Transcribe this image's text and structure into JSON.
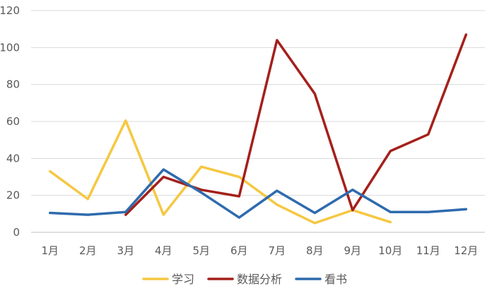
{
  "chart_data": {
    "type": "line",
    "categories": [
      "1月",
      "2月",
      "3月",
      "4月",
      "5月",
      "6月",
      "7月",
      "8月",
      "9月",
      "10月",
      "11月",
      "12月"
    ],
    "ylim": [
      0,
      120
    ],
    "yticks": [
      0,
      20,
      40,
      60,
      80,
      100,
      120
    ],
    "grid": true,
    "legend_position": "bottom",
    "series": [
      {
        "name": "学习",
        "color": "#F5C842",
        "values": [
          33,
          18,
          60.5,
          9.5,
          35.5,
          30,
          15,
          5,
          12,
          5.5,
          null,
          null
        ]
      },
      {
        "name": "数据分析",
        "color": "#A4201B",
        "values": [
          null,
          null,
          9.5,
          30,
          23,
          19.5,
          104,
          75,
          12,
          44,
          53,
          107
        ]
      },
      {
        "name": "看书",
        "color": "#2E6BAE",
        "values": [
          10.5,
          9.5,
          11,
          34,
          21.5,
          8,
          22.5,
          10.5,
          23,
          11,
          11,
          12.5
        ]
      }
    ]
  }
}
